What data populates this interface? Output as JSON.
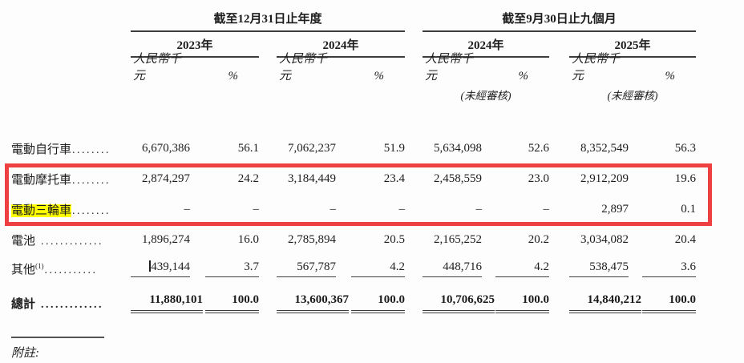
{
  "table": {
    "header": {
      "period_groups": [
        "截至12月31日止年度",
        "截至9月30日止九個月"
      ],
      "years": [
        "2023年",
        "2024年",
        "2024年",
        "2025年"
      ],
      "amount_unit_label": "人民幣千元",
      "percent_label": "%",
      "unaudited_label": "(未經審核)"
    },
    "rows": [
      {
        "label": "電動自行車",
        "dots": "........",
        "values": [
          "6,670,386",
          "56.1",
          "7,062,237",
          "51.9",
          "5,634,098",
          "52.6",
          "8,352,549",
          "56.3"
        ]
      },
      {
        "label": "電動摩托車",
        "dots": "........",
        "in_red_box": true,
        "values": [
          "2,874,297",
          "24.2",
          "3,184,449",
          "23.4",
          "2,458,559",
          "23.0",
          "2,912,209",
          "19.6"
        ]
      },
      {
        "label": "電動三輪車",
        "dots": "........",
        "in_red_box": true,
        "highlight": true,
        "values": [
          "–",
          "–",
          "–",
          "–",
          "–",
          "–",
          "2,897",
          "0.1"
        ]
      },
      {
        "label": "電池",
        "dots": " .............",
        "values": [
          "1,896,274",
          "16.0",
          "2,785,894",
          "20.5",
          "2,165,252",
          "20.2",
          "3,034,082",
          "20.4"
        ]
      },
      {
        "label": "其他",
        "sup": "(1)",
        "dots": "...........",
        "underline": true,
        "caret": true,
        "values": [
          "439,144",
          "3.7",
          "567,787",
          "4.2",
          "448,716",
          "4.2",
          "538,475",
          "3.6"
        ]
      },
      {
        "label": "總計",
        "dots": " .............",
        "bold": true,
        "double_underline": true,
        "values": [
          "11,880,101",
          "100.0",
          "13,600,367",
          "100.0",
          "10,706,625",
          "100.0",
          "14,840,212",
          "100.0"
        ]
      }
    ],
    "styles": {
      "red_box_color": "#ee4040",
      "highlight_color": "#ffff00",
      "text_color": "#1d1d1d"
    }
  },
  "footnote": {
    "label": "附註:"
  }
}
